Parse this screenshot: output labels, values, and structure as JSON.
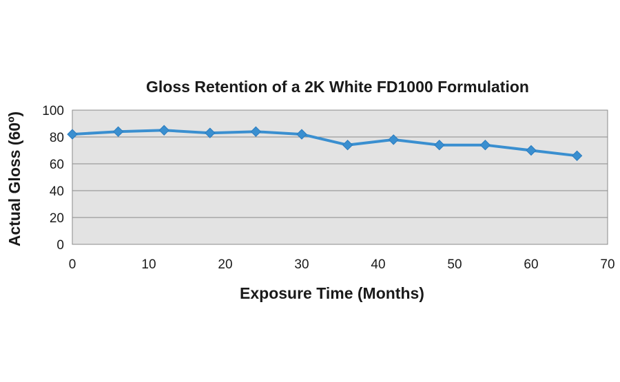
{
  "chart_data": {
    "type": "line",
    "title": "Gloss Retention of a 2K White FD1000 Formulation",
    "xlabel": "Exposure Time (Months)",
    "ylabel": "Actual Gloss (60º)",
    "xlim": [
      0,
      70
    ],
    "ylim": [
      0,
      100
    ],
    "xticks": [
      "0",
      "10",
      "20",
      "30",
      "40",
      "50",
      "60",
      "70"
    ],
    "yticks": [
      "0",
      "20",
      "40",
      "60",
      "80",
      "100"
    ],
    "grid": true,
    "legend": "none",
    "series": [
      {
        "x": [
          0,
          6,
          12,
          18,
          24,
          30,
          36,
          42,
          48,
          54,
          60,
          66
        ],
        "y": [
          82,
          84,
          85,
          83,
          84,
          82,
          74,
          78,
          74,
          74,
          70,
          66
        ]
      }
    ],
    "colors": {
      "line": "#3a8fd0",
      "marker": "#3a8fd0",
      "plot_background": "#e3e3e3",
      "gridline": "#8a8a8a"
    }
  }
}
